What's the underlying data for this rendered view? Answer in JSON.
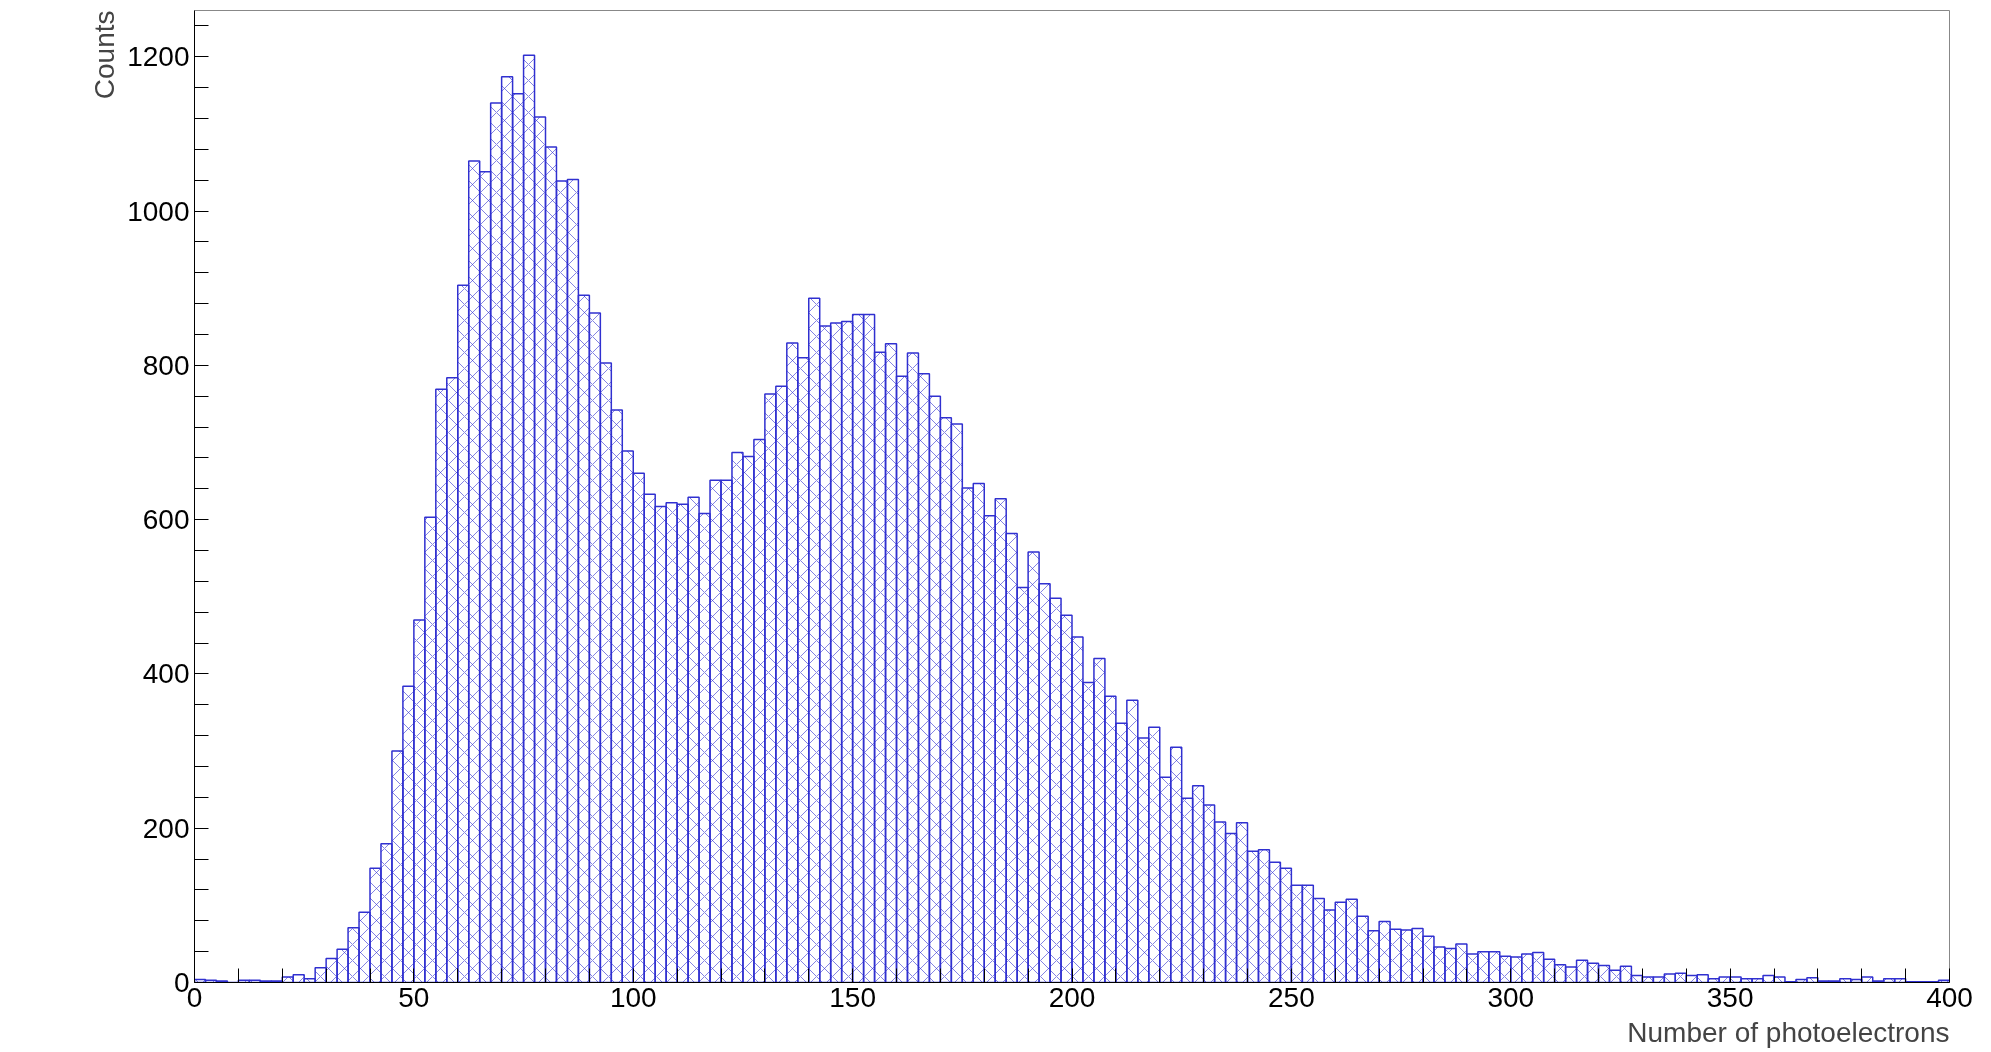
{
  "chart_data": {
    "type": "histogram",
    "xlabel": "Number of photoelectrons",
    "ylabel": "Counts",
    "color": "#3030d0",
    "bins": [
      0,
      2.5,
      5,
      7.5,
      10,
      12.5,
      15,
      17.5,
      20,
      22.5,
      25,
      27.5,
      30,
      32.5,
      35,
      37.5,
      40,
      42.5,
      45,
      47.5,
      50,
      52.5,
      55,
      57.5,
      60,
      62.5,
      65,
      67.5,
      70,
      72.5,
      75,
      77.5,
      80,
      82.5,
      85,
      87.5,
      90,
      92.5,
      95,
      97.5,
      100,
      102.5,
      105,
      107.5,
      110,
      112.5,
      115,
      117.5,
      120,
      122.5,
      125,
      127.5,
      130,
      132.5,
      135,
      137.5,
      140,
      142.5,
      145,
      147.5,
      150,
      152.5,
      155,
      157.5,
      160,
      162.5,
      165,
      167.5,
      170,
      172.5,
      175,
      177.5,
      180,
      182.5,
      185,
      187.5,
      190,
      192.5,
      195,
      197.5,
      200,
      202.5,
      205,
      207.5,
      210,
      212.5,
      215,
      217.5,
      220,
      222.5,
      225,
      227.5,
      230,
      232.5,
      235,
      237.5,
      240,
      242.5,
      245,
      247.5,
      250,
      252.5,
      255,
      257.5,
      260,
      262.5,
      265,
      267.5,
      270,
      272.5,
      275,
      277.5,
      280,
      282.5,
      285,
      287.5,
      290,
      292.5,
      295,
      297.5,
      300,
      302.5,
      305,
      307.5,
      310,
      312.5,
      315,
      317.5,
      320,
      322.5,
      325,
      327.5,
      330,
      332.5,
      335,
      337.5,
      340,
      342.5,
      345,
      347.5,
      350,
      352.5,
      355,
      357.5,
      360,
      362.5,
      365,
      367.5,
      370,
      372.5,
      375,
      377.5,
      380,
      382.5,
      385,
      387.5,
      390,
      392.5,
      395,
      397.5,
      400
    ],
    "values": [
      4,
      3,
      2,
      0,
      3,
      3,
      2,
      2,
      7,
      10,
      5,
      19,
      31,
      43,
      71,
      91,
      148,
      180,
      300,
      384,
      470,
      603,
      769,
      784,
      904,
      1065,
      1051,
      1140,
      1174,
      1152,
      1202,
      1122,
      1083,
      1039,
      1041,
      891,
      868,
      803,
      742,
      689,
      660,
      633,
      617,
      622,
      620,
      629,
      608,
      651,
      651,
      687,
      682,
      704,
      763,
      773,
      829,
      810,
      887,
      851,
      855,
      857,
      866,
      866,
      817,
      828,
      786,
      816,
      789,
      760,
      732,
      724,
      641,
      647,
      605,
      627,
      582,
      512,
      558,
      517,
      498,
      476,
      448,
      389,
      420,
      371,
      336,
      366,
      317,
      331,
      266,
      305,
      239,
      255,
      230,
      208,
      193,
      207,
      170,
      172,
      156,
      148,
      126,
      126,
      109,
      94,
      104,
      108,
      86,
      67,
      79,
      69,
      68,
      70,
      60,
      46,
      44,
      50,
      37,
      40,
      40,
      34,
      33,
      37,
      39,
      30,
      23,
      20,
      29,
      25,
      22,
      16,
      21,
      9,
      7,
      7,
      11,
      12,
      9,
      10,
      5,
      7,
      7,
      5,
      5,
      9,
      7,
      1,
      4,
      6,
      2,
      2,
      5,
      4,
      7,
      2,
      5,
      5,
      1,
      1,
      1,
      3
    ],
    "xlim": [
      0,
      400
    ],
    "ylim": [
      0,
      1260
    ],
    "xticks": [
      0,
      {
        "value": 10,
        "label": null
      },
      {
        "value": 20,
        "label": null
      },
      {
        "value": 30,
        "label": null
      },
      {
        "value": 40,
        "label": null
      },
      50,
      {
        "value": 60,
        "label": null
      },
      {
        "value": 70,
        "label": null
      },
      {
        "value": 80,
        "label": null
      },
      {
        "value": 90,
        "label": null
      },
      100,
      {
        "value": 110,
        "label": null
      },
      {
        "value": 120,
        "label": null
      },
      {
        "value": 130,
        "label": null
      },
      {
        "value": 140,
        "label": null
      },
      150,
      {
        "value": 160,
        "label": null
      },
      {
        "value": 170,
        "label": null
      },
      {
        "value": 180,
        "label": null
      },
      {
        "value": 190,
        "label": null
      },
      200,
      {
        "value": 210,
        "label": null
      },
      {
        "value": 220,
        "label": null
      },
      {
        "value": 230,
        "label": null
      },
      {
        "value": 240,
        "label": null
      },
      250,
      {
        "value": 260,
        "label": null
      },
      {
        "value": 270,
        "label": null
      },
      {
        "value": 280,
        "label": null
      },
      {
        "value": 290,
        "label": null
      },
      300,
      {
        "value": 310,
        "label": null
      },
      {
        "value": 320,
        "label": null
      },
      {
        "value": 330,
        "label": null
      },
      {
        "value": 340,
        "label": null
      },
      350,
      {
        "value": 360,
        "label": null
      },
      {
        "value": 370,
        "label": null
      },
      {
        "value": 380,
        "label": null
      },
      {
        "value": 390,
        "label": null
      },
      400
    ],
    "yticks": [
      0,
      {
        "value": 40,
        "label": null
      },
      {
        "value": 80,
        "label": null
      },
      {
        "value": 120,
        "label": null
      },
      {
        "value": 160,
        "label": null
      },
      200,
      {
        "value": 240,
        "label": null
      },
      {
        "value": 280,
        "label": null
      },
      {
        "value": 320,
        "label": null
      },
      {
        "value": 360,
        "label": null
      },
      400,
      {
        "value": 440,
        "label": null
      },
      {
        "value": 480,
        "label": null
      },
      {
        "value": 520,
        "label": null
      },
      {
        "value": 560,
        "label": null
      },
      600,
      {
        "value": 640,
        "label": null
      },
      {
        "value": 680,
        "label": null
      },
      {
        "value": 720,
        "label": null
      },
      {
        "value": 760,
        "label": null
      },
      800,
      {
        "value": 840,
        "label": null
      },
      {
        "value": 880,
        "label": null
      },
      {
        "value": 920,
        "label": null
      },
      {
        "value": 960,
        "label": null
      },
      1000,
      {
        "value": 1040,
        "label": null
      },
      {
        "value": 1080,
        "label": null
      },
      {
        "value": 1120,
        "label": null
      },
      {
        "value": 1160,
        "label": null
      },
      1200,
      {
        "value": 1240,
        "label": null
      }
    ],
    "grid": false
  }
}
